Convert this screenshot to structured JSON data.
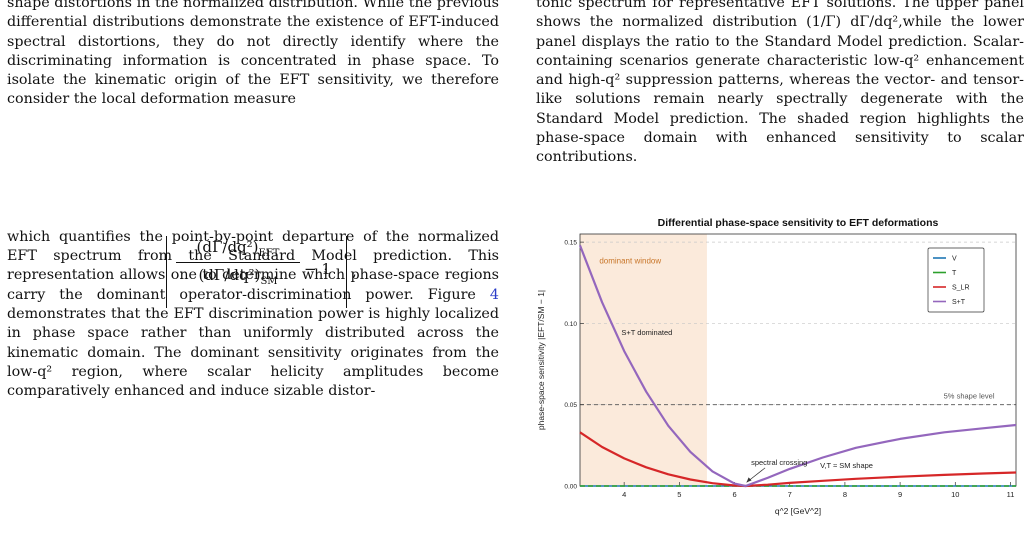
{
  "left_text": {
    "line1": "shape distortions in the normalized distribution. While",
    "para1_rest": "the previous differential distributions demonstrate the existence of EFT-induced spectral distortions, they do not directly identify where the discriminating information is concentrated in phase space. To isolate the kinematic origin of the EFT sensitivity, we therefore consider the local deformation measure",
    "para2_a": "which quantifies the point-by-point departure of the normalized EFT spectrum from the Standard Model prediction.  This representation allows one to determine which phase-space regions carry the dominant operator-discrimination power.  Figure ",
    "fig_ref": "4",
    "para2_b": " demonstrates that the EFT discrimination power is highly localized in phase space rather than uniformly distributed across the kinematic domain. The dominant sensitivity originates from the low-q² region, where scalar helicity amplitudes become comparatively enhanced and induce sizable distor-"
  },
  "equation": {
    "num": "(dΓ/dq²)",
    "num_sub": "EFT",
    "den": "(dΓ/dq²)",
    "den_sub": "SM",
    "minus_one": "− 1",
    "comma": ","
  },
  "right_text": {
    "caption": "tonic spectrum for representative EFT solutions. The upper panel shows the normalized distribution (1/Γ) dΓ/dq²,while the lower panel displays the ratio to the Standard Model prediction.  Scalar-containing scenarios generate characteristic low-q² enhancement and high-q² suppression patterns, whereas the vector- and tensor-like solutions remain nearly spectrally degenerate with the Standard Model prediction. The shaded region highlights the phase-space domain with enhanced sensitivity to scalar contributions."
  },
  "colors": {
    "V": "#1f77b4",
    "T": "#2ca02c",
    "S_LR": "#d62728",
    "S+T": "#9467bd",
    "window": "#fbeadb",
    "window_label": "#c8762a"
  },
  "chart_data": {
    "type": "line",
    "title": "Differential phase-space sensitivity to EFT deformations",
    "xlabel": "q^2  [GeV^2]",
    "ylabel": "phase-space sensitivity |EFT/SM − 1|",
    "xlim": [
      3.2,
      11.1
    ],
    "ylim": [
      0,
      0.155
    ],
    "x_ticks": [
      "4",
      "5",
      "6",
      "7",
      "8",
      "9",
      "10",
      "11"
    ],
    "y_ticks": [
      "0.00",
      "0.05",
      "0.10",
      "0.15"
    ],
    "grid": "horizontal-dashed",
    "legend_position": "top-right",
    "series": [
      {
        "name": "V",
        "x": [
          3.2,
          11.1
        ],
        "y": [
          0.0,
          0.0
        ]
      },
      {
        "name": "T",
        "x": [
          3.2,
          11.1
        ],
        "y": [
          0.0,
          0.0
        ]
      },
      {
        "name": "S_LR",
        "x": [
          3.2,
          3.6,
          4.0,
          4.4,
          4.8,
          5.2,
          5.6,
          6.0,
          6.2,
          6.6,
          7.0,
          7.6,
          8.2,
          9.0,
          9.8,
          10.5,
          11.1
        ],
        "y": [
          0.033,
          0.024,
          0.017,
          0.0115,
          0.0072,
          0.004,
          0.0017,
          0.0003,
          0.0,
          0.0008,
          0.0019,
          0.0032,
          0.0044,
          0.0057,
          0.0068,
          0.0077,
          0.0083
        ]
      },
      {
        "name": "S+T",
        "x": [
          3.2,
          3.6,
          4.0,
          4.4,
          4.8,
          5.2,
          5.6,
          6.0,
          6.2,
          6.6,
          7.0,
          7.6,
          8.2,
          9.0,
          9.8,
          10.5,
          11.1
        ],
        "y": [
          0.148,
          0.113,
          0.083,
          0.058,
          0.037,
          0.021,
          0.009,
          0.0015,
          0.0,
          0.005,
          0.0105,
          0.0175,
          0.0235,
          0.029,
          0.033,
          0.0355,
          0.0375
        ]
      }
    ],
    "shaded_window": {
      "x": [
        3.2,
        5.5
      ],
      "label": "dominant window"
    },
    "reference_line": {
      "y": 0.05,
      "label": "5% shape level"
    },
    "annotations": [
      {
        "text": "S+T dominated",
        "x": 3.95,
        "y": 0.093
      },
      {
        "text": "spectral crossing",
        "x": 6.3,
        "y": 0.013,
        "arrow_to": [
          6.2,
          0.001
        ]
      },
      {
        "text": "V,T ≈ SM shape",
        "x": 7.55,
        "y": 0.011
      }
    ]
  }
}
